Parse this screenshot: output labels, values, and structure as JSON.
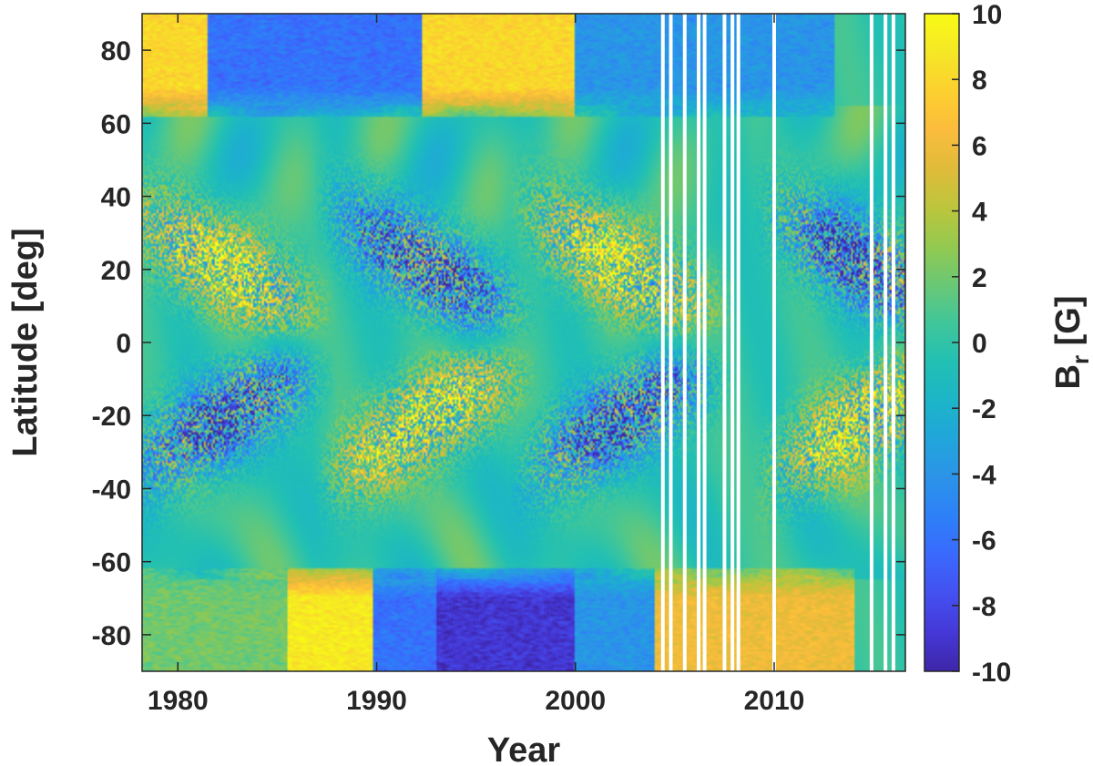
{
  "chart_data": {
    "type": "heatmap",
    "title": "",
    "xlabel": "Year",
    "ylabel": "Latitude [deg]",
    "colorbar_label": "B",
    "colorbar_label_sub": "r",
    "colorbar_label_unit": " [G]",
    "xlim": [
      1978.2,
      2016.6
    ],
    "ylim": [
      -90,
      90
    ],
    "clim": [
      -10,
      10
    ],
    "x_ticks": [
      1980,
      1990,
      2000,
      2010
    ],
    "y_ticks": [
      -80,
      -60,
      -40,
      -20,
      0,
      20,
      40,
      60,
      80
    ],
    "c_ticks": [
      -10,
      -8,
      -6,
      -4,
      -2,
      0,
      2,
      4,
      6,
      8,
      10
    ],
    "x_tick_labels": [
      "1980",
      "1990",
      "2000",
      "2010"
    ],
    "y_tick_labels": [
      "-80",
      "-60",
      "-40",
      "-20",
      "0",
      "20",
      "40",
      "60",
      "80"
    ],
    "c_tick_labels": [
      "-10",
      "-8",
      "-6",
      "-4",
      "-2",
      "0",
      "2",
      "4",
      "6",
      "8",
      "10"
    ],
    "colormap": "parula",
    "colormap_stops": [
      "#3e26a8",
      "#4538d7",
      "#4450f0",
      "#3a69fd",
      "#2d80f8",
      "#2c93e8",
      "#21a5db",
      "#1cb5c8",
      "#22c0b3",
      "#40c69a",
      "#6ac875",
      "#94c94f",
      "#bdc53c",
      "#e0bb3a",
      "#fbbc3c",
      "#fcd02f",
      "#f5e726",
      "#f9fb15"
    ],
    "data_gaps_years": [
      2004.4,
      2004.8,
      2005.5,
      2006.2,
      2006.5,
      2007.5,
      2007.9,
      2008.2,
      2010.0,
      2014.9,
      2015.6,
      2016.0
    ],
    "grid": false,
    "features": [
      {
        "name": "North polar field",
        "x": [
          1978.2,
          1981.5
        ],
        "y": [
          62,
          90
        ],
        "value": 8
      },
      {
        "name": "North polar field",
        "x": [
          1981.5,
          1992.3
        ],
        "y": [
          62,
          90
        ],
        "value": -6
      },
      {
        "name": "North polar field",
        "x": [
          1992.3,
          2000.0
        ],
        "y": [
          62,
          90
        ],
        "value": 8
      },
      {
        "name": "North polar field",
        "x": [
          2000.0,
          2013.0
        ],
        "y": [
          62,
          90
        ],
        "value": -4
      },
      {
        "name": "South polar field",
        "x": [
          1978.2,
          1985.5
        ],
        "y": [
          -90,
          -62
        ],
        "value": 2
      },
      {
        "name": "South polar field",
        "x": [
          1985.5,
          1989.8
        ],
        "y": [
          -90,
          -62
        ],
        "value": 9
      },
      {
        "name": "South polar field",
        "x": [
          1989.8,
          1993.0
        ],
        "y": [
          -90,
          -62
        ],
        "value": -6
      },
      {
        "name": "South polar field",
        "x": [
          1993.0,
          2000.0
        ],
        "y": [
          -90,
          -62
        ],
        "value": -9
      },
      {
        "name": "South polar field",
        "x": [
          2000.0,
          2004.0
        ],
        "y": [
          -90,
          -62
        ],
        "value": -4
      },
      {
        "name": "South polar field",
        "x": [
          2004.0,
          2014.0
        ],
        "y": [
          -90,
          -62
        ],
        "value": 6
      }
    ]
  }
}
